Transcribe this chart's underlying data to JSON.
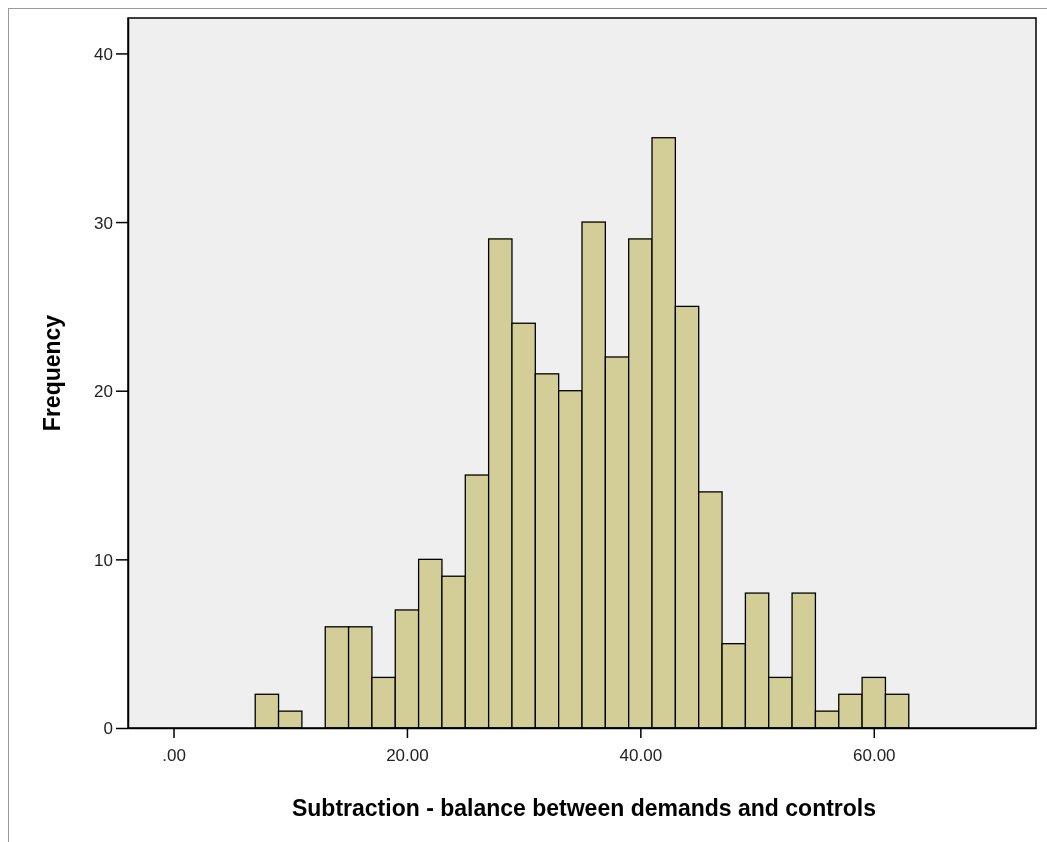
{
  "chart_data": {
    "type": "histogram",
    "xlabel": "Subtraction - balance between demands and controls",
    "ylabel": "Frequency",
    "bins": [
      7,
      9,
      11,
      13,
      15,
      17,
      19,
      21,
      23,
      25,
      27,
      29,
      31,
      33,
      35,
      37,
      39,
      41,
      43,
      45,
      47,
      49,
      51,
      53,
      55,
      57,
      59,
      61,
      63
    ],
    "values": [
      2,
      1,
      0,
      6,
      6,
      3,
      7,
      10,
      9,
      15,
      29,
      24,
      21,
      20,
      30,
      22,
      29,
      35,
      25,
      14,
      5,
      8,
      3,
      8,
      1,
      2,
      3,
      2
    ],
    "color": "#d3ce97",
    "xlim": [
      -3.9,
      73.9
    ],
    "xticks": [
      {
        "value": 0,
        "label": ".00"
      },
      {
        "value": 20,
        "label": "20.00"
      },
      {
        "value": 40,
        "label": "40.00"
      },
      {
        "value": 60,
        "label": "60.00"
      }
    ],
    "ylim": [
      0,
      42.1
    ],
    "yticks": [
      0,
      10,
      20,
      30,
      40
    ],
    "grid": false
  }
}
